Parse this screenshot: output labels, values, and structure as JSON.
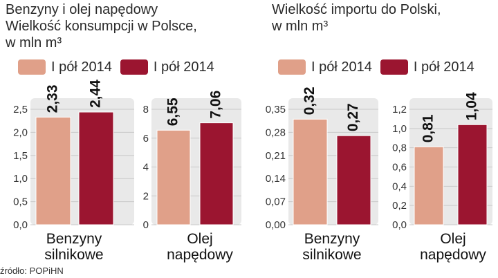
{
  "left_title": [
    "Benzyny i olej napędowy",
    "Wielkość konsumpcji w Polsce,",
    "w mln m³"
  ],
  "right_title": [
    "Wielkość importu do Polski,",
    "w mln m³"
  ],
  "legend": [
    {
      "label": "I pół 2014",
      "color": "#e0a089"
    },
    {
      "label": "I pół 2014",
      "color": "#9b1530"
    }
  ],
  "source": "źródło: POPiHN",
  "colors": {
    "series1": "#e0a089",
    "series2": "#9b1530",
    "panel": "#e9e9e9",
    "grid": "#c9c9c9"
  },
  "chart_data": [
    {
      "type": "bar",
      "categories": [
        "Benzyny silnikowe"
      ],
      "category_lines": [
        [
          "Benzyny",
          "silnikowe"
        ]
      ],
      "ylim": [
        0,
        2.5
      ],
      "yticks": [
        "0,0",
        "0,5",
        "1,0",
        "1,5",
        "2,0",
        "2,5"
      ],
      "values": [
        2.33,
        2.44
      ],
      "labels": [
        "2,33",
        "2,44"
      ]
    },
    {
      "type": "bar",
      "categories": [
        "Olej napędowy"
      ],
      "category_lines": [
        [
          "Olej",
          "napędowy"
        ]
      ],
      "ylim": [
        0,
        8
      ],
      "yticks": [
        "0",
        "2",
        "4",
        "6",
        "8"
      ],
      "values": [
        6.55,
        7.06
      ],
      "labels": [
        "6,55",
        "7,06"
      ]
    },
    {
      "type": "bar",
      "categories": [
        "Benzyny silnikowe"
      ],
      "category_lines": [
        [
          "Benzyny",
          "silnikowe"
        ]
      ],
      "ylim": [
        0,
        0.35
      ],
      "yticks": [
        "0,00",
        "0,07",
        "0,14",
        "0,21",
        "0,28",
        "0,35"
      ],
      "values": [
        0.32,
        0.27
      ],
      "labels": [
        "0,32",
        "0,27"
      ]
    },
    {
      "type": "bar",
      "categories": [
        "Olej napędowy"
      ],
      "category_lines": [
        [
          "Olej",
          "napędowy"
        ]
      ],
      "ylim": [
        0,
        1.2
      ],
      "yticks": [
        "0,0",
        "0,2",
        "0,4",
        "0,6",
        "0,8",
        "1,0",
        "1,2"
      ],
      "values": [
        0.81,
        1.04
      ],
      "labels": [
        "0,81",
        "1,04"
      ]
    }
  ]
}
